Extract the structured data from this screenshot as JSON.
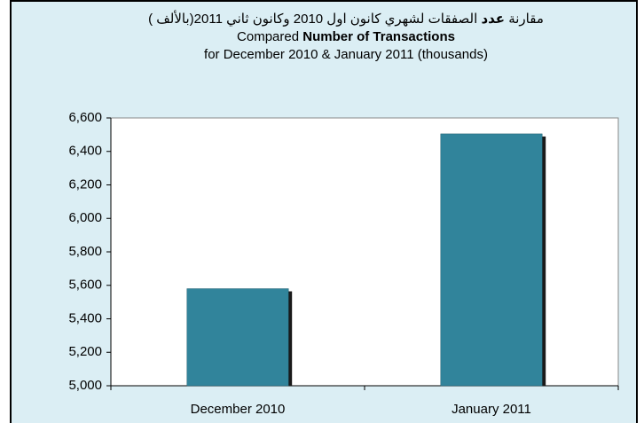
{
  "chart_data": {
    "type": "bar",
    "title": [
      [
        "مقارنة ",
        "عدد",
        " الصفقات لشهري كانون اول 2010 وكانون ثاني 2011(بالألف )"
      ],
      [
        "Compared ",
        "Number of Transactions"
      ],
      [
        "for December 2010 & January 2011 (thousands)"
      ]
    ],
    "categories": [
      "December 2010",
      "January 2011"
    ],
    "values": [
      5580,
      6505
    ],
    "color": "#31849b",
    "ylim": [
      5000,
      6600
    ],
    "yticks": [
      {
        "value": 5000,
        "label": "5,000"
      },
      {
        "value": 5200,
        "label": "5,200"
      },
      {
        "value": 5400,
        "label": "5,400"
      },
      {
        "value": 5600,
        "label": "5,600"
      },
      {
        "value": 5800,
        "label": "5,800"
      },
      {
        "value": 6000,
        "label": "6,000"
      },
      {
        "value": 6200,
        "label": "6,200"
      },
      {
        "value": 6400,
        "label": "6,400"
      },
      {
        "value": 6600,
        "label": "6,600"
      }
    ],
    "grid": false
  }
}
